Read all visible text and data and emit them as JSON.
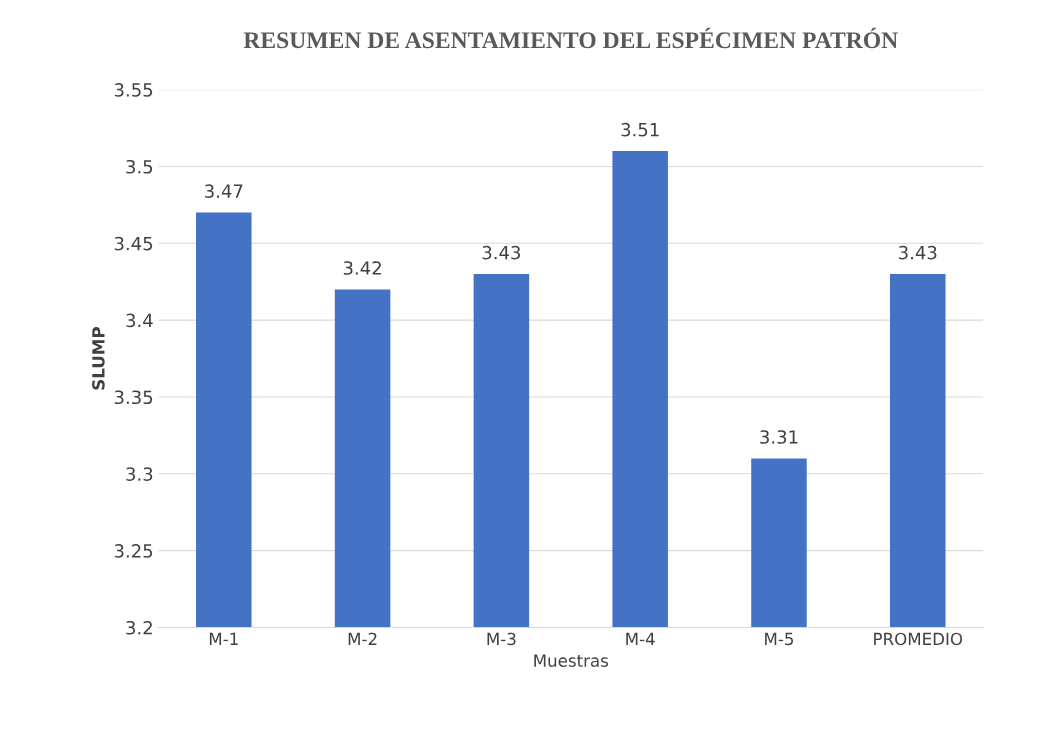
{
  "chart_data": {
    "type": "bar",
    "title": "RESUMEN DE ASENTAMIENTO DEL ESPÉCIMEN PATRÓN",
    "xlabel": "Muestras",
    "ylabel": "SLUMP",
    "categories": [
      "M-1",
      "M-2",
      "M-3",
      "M-4",
      "M-5",
      "PROMEDIO"
    ],
    "values": [
      3.47,
      3.42,
      3.43,
      3.51,
      3.31,
      3.43
    ],
    "color": "#4472c4",
    "ylim": [
      3.2,
      3.55
    ],
    "yticks": [
      3.2,
      3.25,
      3.3,
      3.35,
      3.4,
      3.45,
      3.5,
      3.55
    ],
    "grid": "y",
    "data_labels": true
  }
}
